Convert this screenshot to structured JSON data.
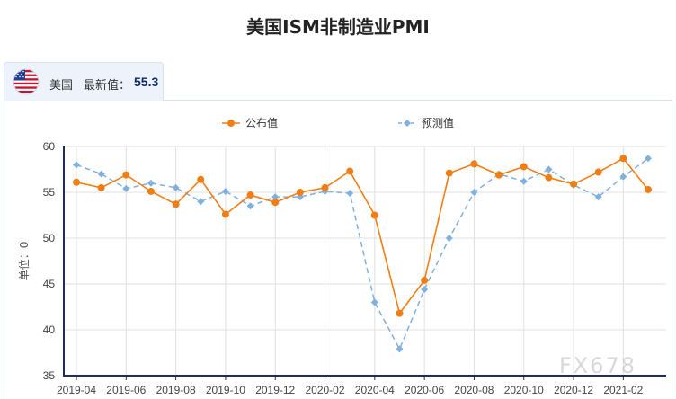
{
  "header": {
    "title": "美国ISM非制造业PMI"
  },
  "tab": {
    "country": "美国",
    "latest_label": "最新值：",
    "latest_value": "55.3",
    "flag_icon": "us-flag-icon"
  },
  "watermark": "FX678",
  "colors": {
    "actual": "#f07e14",
    "forecast": "#7fb0e0",
    "axis": "#1f2d5a",
    "grid": "#e0e0e0"
  },
  "chart_data": {
    "type": "line",
    "title": "美国ISM非制造业PMI",
    "xlabel": "",
    "ylabel": "单位：0",
    "ylim": [
      35,
      60
    ],
    "yticks": [
      35,
      40,
      45,
      50,
      55,
      60
    ],
    "x": [
      "2019-04",
      "2019-05",
      "2019-06",
      "2019-07",
      "2019-08",
      "2019-09",
      "2019-10",
      "2019-11",
      "2019-12",
      "2020-01",
      "2020-02",
      "2020-03",
      "2020-04",
      "2020-05",
      "2020-06",
      "2020-07",
      "2020-08",
      "2020-09",
      "2020-10",
      "2020-11",
      "2020-12",
      "2021-01",
      "2021-02",
      "2021-03"
    ],
    "xtick_labels": [
      "2019-04",
      "2019-06",
      "2019-08",
      "2019-10",
      "2019-12",
      "2020-02",
      "2020-04",
      "2020-06",
      "2020-08",
      "2020-10",
      "2020-12",
      "2021-02"
    ],
    "legend": "top-center",
    "series": [
      {
        "name": "公布值",
        "style": "solid-circle",
        "values": [
          56.1,
          55.5,
          56.9,
          55.1,
          53.7,
          56.4,
          52.6,
          54.7,
          53.9,
          55.0,
          55.5,
          57.3,
          52.5,
          41.8,
          45.4,
          57.1,
          58.1,
          56.9,
          57.8,
          56.6,
          55.9,
          57.2,
          58.7,
          55.3
        ]
      },
      {
        "name": "预测值",
        "style": "dashed-diamond",
        "values": [
          58.0,
          57.0,
          55.4,
          56.0,
          55.5,
          54.0,
          55.1,
          53.5,
          54.5,
          54.5,
          55.1,
          54.9,
          43.0,
          37.9,
          44.4,
          50.0,
          55.0,
          57.0,
          56.2,
          57.5,
          55.8,
          54.5,
          56.7,
          58.7
        ]
      }
    ]
  }
}
